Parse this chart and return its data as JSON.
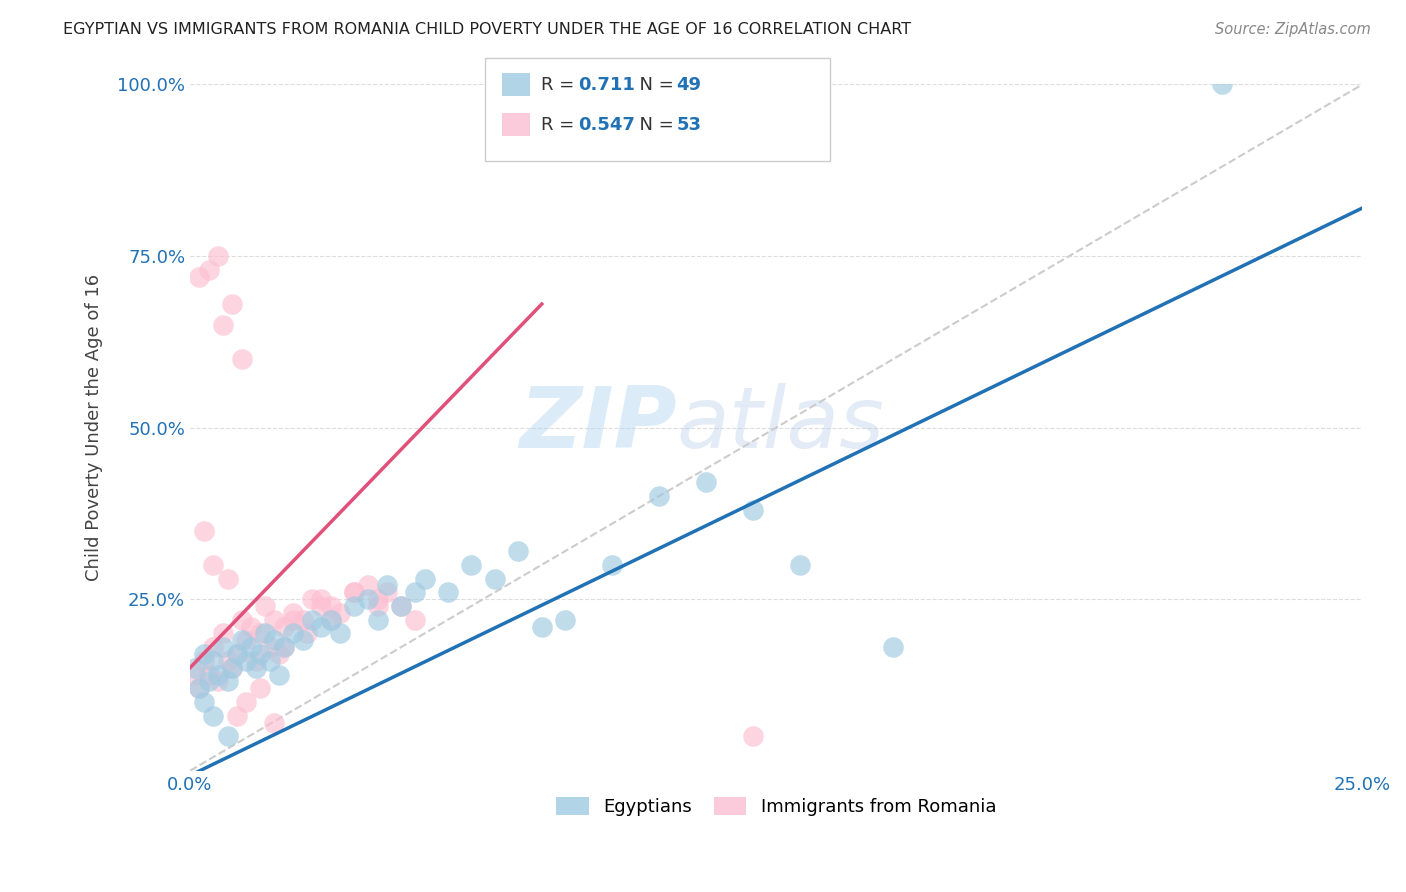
{
  "title": "EGYPTIAN VS IMMIGRANTS FROM ROMANIA CHILD POVERTY UNDER THE AGE OF 16 CORRELATION CHART",
  "source": "Source: ZipAtlas.com",
  "ylabel": "Child Poverty Under the Age of 16",
  "xlim": [
    0.0,
    0.25
  ],
  "ylim": [
    0.0,
    1.0
  ],
  "xticks": [
    0.0,
    0.05,
    0.1,
    0.15,
    0.2,
    0.25
  ],
  "yticks": [
    0.0,
    0.25,
    0.5,
    0.75,
    1.0
  ],
  "blue_color": "#9ecae1",
  "pink_color": "#fcbfd2",
  "blue_line_color": "#2171b5",
  "pink_line_color": "#e0507a",
  "watermark": "ZIPatlas",
  "legend_r_blue": "0.711",
  "legend_n_blue": "49",
  "legend_r_pink": "0.547",
  "legend_n_pink": "53",
  "legend_label_blue": "Egyptians",
  "legend_label_pink": "Immigrants from Romania",
  "blue_scatter_x": [
    0.001,
    0.002,
    0.003,
    0.004,
    0.005,
    0.006,
    0.007,
    0.008,
    0.009,
    0.01,
    0.011,
    0.012,
    0.013,
    0.014,
    0.015,
    0.016,
    0.017,
    0.018,
    0.019,
    0.02,
    0.022,
    0.024,
    0.026,
    0.028,
    0.03,
    0.032,
    0.035,
    0.038,
    0.04,
    0.042,
    0.045,
    0.048,
    0.05,
    0.055,
    0.06,
    0.065,
    0.07,
    0.075,
    0.08,
    0.09,
    0.1,
    0.11,
    0.12,
    0.13,
    0.15,
    0.003,
    0.005,
    0.008,
    0.22
  ],
  "blue_scatter_y": [
    0.15,
    0.12,
    0.17,
    0.13,
    0.16,
    0.14,
    0.18,
    0.13,
    0.15,
    0.17,
    0.19,
    0.16,
    0.18,
    0.15,
    0.17,
    0.2,
    0.16,
    0.19,
    0.14,
    0.18,
    0.2,
    0.19,
    0.22,
    0.21,
    0.22,
    0.2,
    0.24,
    0.25,
    0.22,
    0.27,
    0.24,
    0.26,
    0.28,
    0.26,
    0.3,
    0.28,
    0.32,
    0.21,
    0.22,
    0.3,
    0.4,
    0.42,
    0.38,
    0.3,
    0.18,
    0.1,
    0.08,
    0.05,
    1.0
  ],
  "pink_scatter_x": [
    0.001,
    0.002,
    0.003,
    0.004,
    0.005,
    0.006,
    0.007,
    0.008,
    0.009,
    0.01,
    0.011,
    0.012,
    0.013,
    0.014,
    0.015,
    0.016,
    0.017,
    0.018,
    0.019,
    0.02,
    0.022,
    0.024,
    0.026,
    0.028,
    0.03,
    0.032,
    0.035,
    0.038,
    0.04,
    0.042,
    0.045,
    0.048,
    0.003,
    0.005,
    0.008,
    0.01,
    0.012,
    0.015,
    0.018,
    0.02,
    0.022,
    0.025,
    0.028,
    0.03,
    0.035,
    0.04,
    0.002,
    0.004,
    0.006,
    0.007,
    0.009,
    0.011,
    0.12
  ],
  "pink_scatter_y": [
    0.14,
    0.12,
    0.16,
    0.14,
    0.18,
    0.13,
    0.2,
    0.16,
    0.15,
    0.17,
    0.22,
    0.19,
    0.21,
    0.16,
    0.2,
    0.24,
    0.18,
    0.22,
    0.17,
    0.21,
    0.23,
    0.22,
    0.25,
    0.24,
    0.24,
    0.23,
    0.26,
    0.27,
    0.25,
    0.26,
    0.24,
    0.22,
    0.35,
    0.3,
    0.28,
    0.08,
    0.1,
    0.12,
    0.07,
    0.18,
    0.22,
    0.2,
    0.25,
    0.22,
    0.26,
    0.24,
    0.72,
    0.73,
    0.75,
    0.65,
    0.68,
    0.6,
    0.05
  ],
  "blue_line_x": [
    -0.01,
    0.25
  ],
  "blue_line_y": [
    -0.04,
    0.82
  ],
  "pink_line_x": [
    0.0,
    0.075
  ],
  "pink_line_y": [
    0.15,
    0.68
  ],
  "diag_line_x": [
    0.0,
    0.25
  ],
  "diag_line_y": [
    0.0,
    1.0
  ]
}
